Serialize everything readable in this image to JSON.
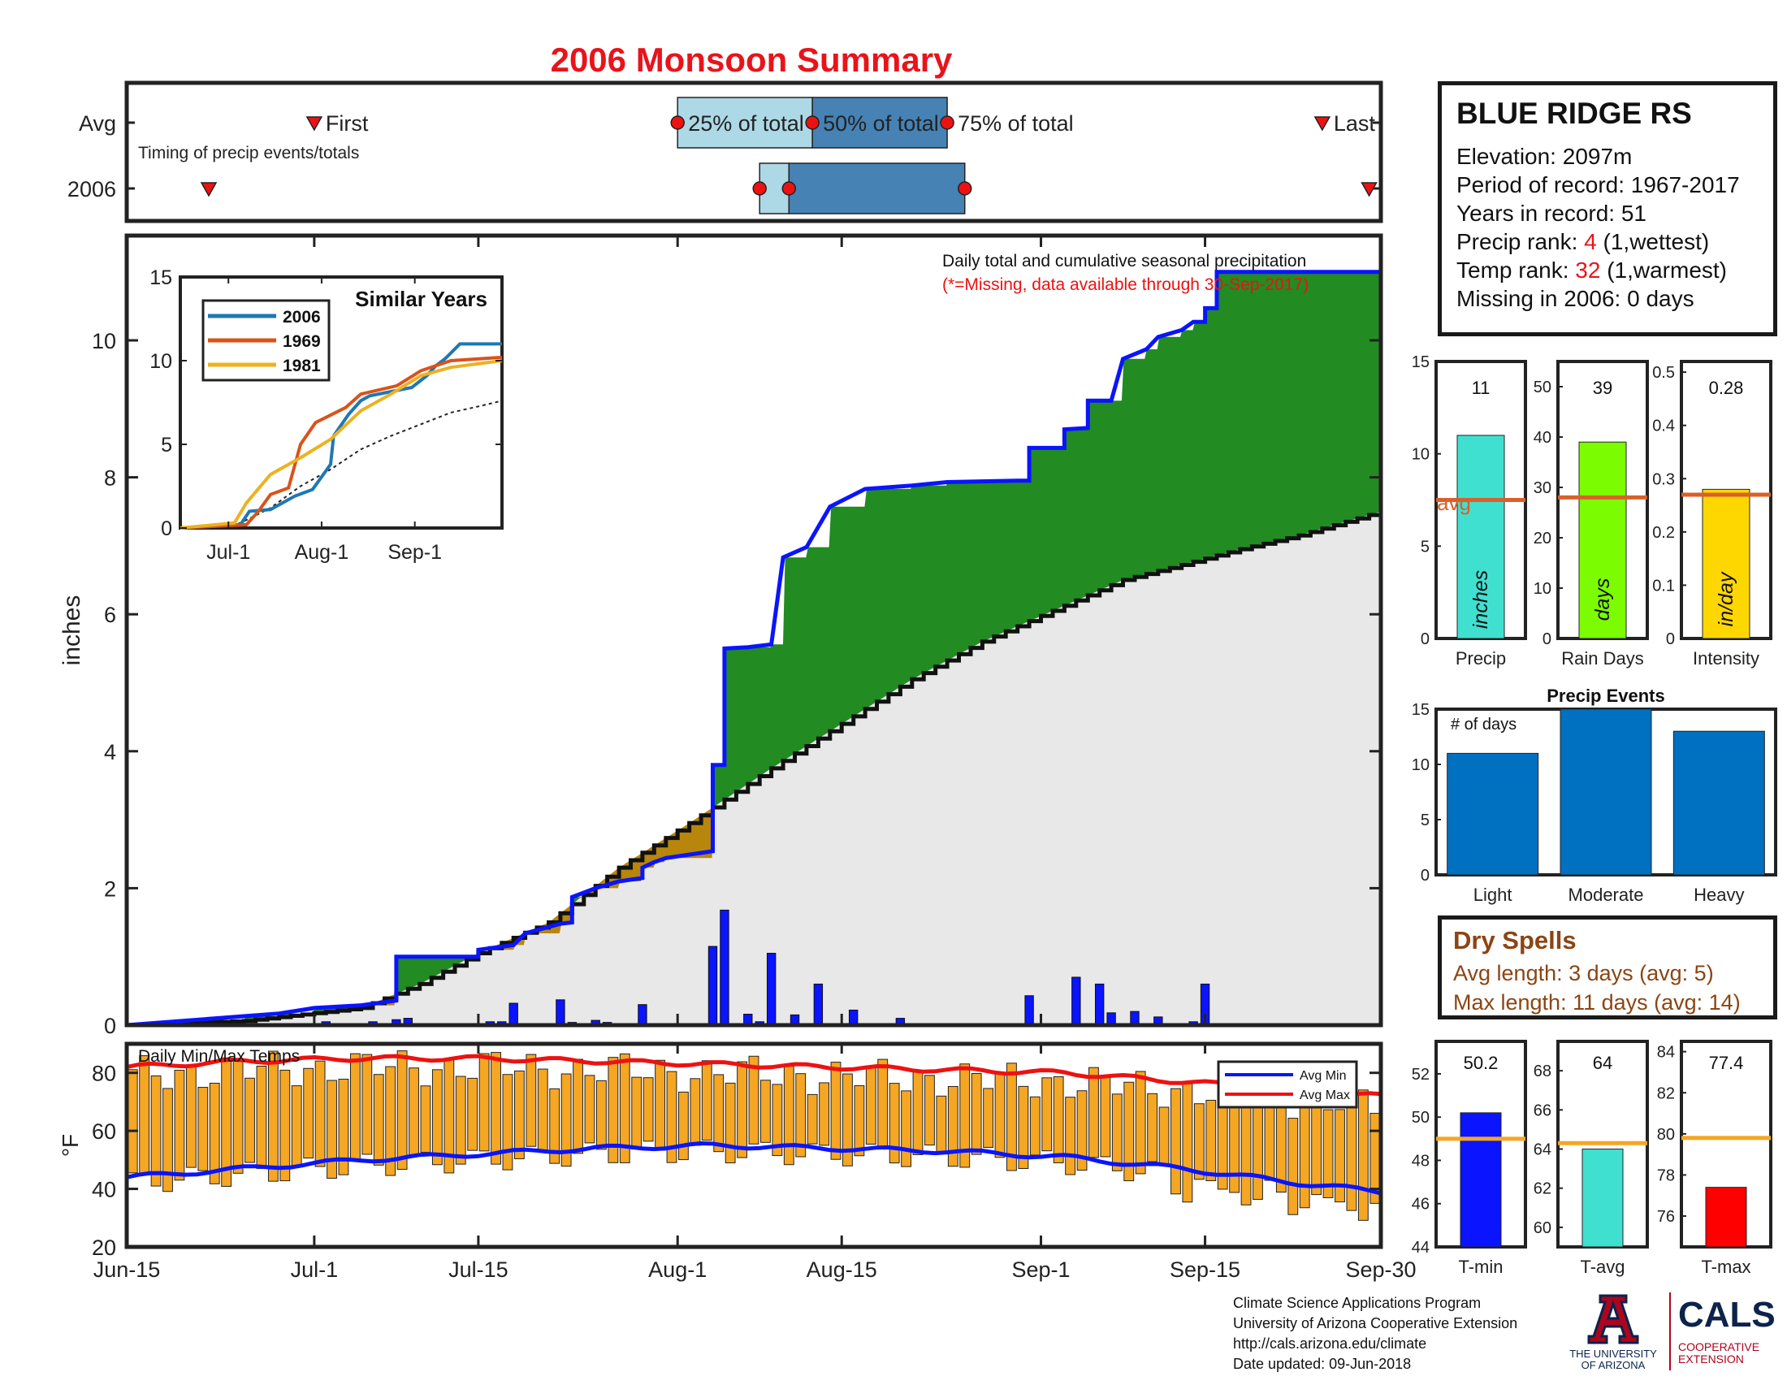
{
  "title": "2006 Monsoon Summary",
  "station": {
    "name": "BLUE RIDGE RS",
    "elevation": "Elevation: 2097m",
    "period": "Period of record: 1967-2017",
    "years": "Years in record: 51",
    "precip_rank_label": "Precip rank: ",
    "precip_rank_value": "4",
    "precip_rank_note": " (1,wettest)",
    "temp_rank_label": "Temp rank: ",
    "temp_rank_value": "32",
    "temp_rank_note": " (1,warmest)",
    "missing": "Missing in 2006: 0 days"
  },
  "dry_spells": {
    "title": "Dry Spells",
    "avg": "Avg length: 3 days (avg: 5)",
    "max": "Max length: 11 days (avg: 14)"
  },
  "footer": {
    "line1": "Climate Science Applications Program",
    "line2": "University of Arizona Cooperative Extension",
    "line3": "http://cals.arizona.edu/climate",
    "line4": " Date updated: 09-Jun-2018"
  },
  "logos": {
    "ua_line1": "THE UNIVERSITY",
    "ua_line2": "OF ARIZONA",
    "cals": "CALS",
    "cals_sub1": "COOPERATIVE",
    "cals_sub2": "EXTENSION"
  },
  "colors": {
    "title_red": "#e8141b",
    "cumulative_line": "#0a14ff",
    "above_avg_fill": "#228b22",
    "below_avg_fill": "#b8860b",
    "avg_fill": "#e8e8e8",
    "daily_bar": "#0a14ff",
    "temp_bar": "#f5a623",
    "avg_max_line": "#ee1111",
    "avg_min_line": "#0a14ff",
    "avg_ref_line": "#d9602a"
  },
  "chart_data": [
    {
      "id": "timing",
      "type": "range",
      "title": "",
      "note": "Timing of precip events/totals",
      "rows": [
        "Avg",
        "2006"
      ],
      "labels": {
        "first": "First",
        "q25": "25% of total",
        "q50": "50% of total",
        "q75": "75% of total",
        "last": "Last"
      },
      "avg": {
        "first": 16,
        "q25": 47,
        "q50": 58.5,
        "q75": 70,
        "last": 102
      },
      "year": {
        "first": 7,
        "q25": 54,
        "q50": 56.5,
        "q75": 71.5,
        "last": 106
      },
      "xlim": [
        0,
        107
      ]
    },
    {
      "id": "precip_main",
      "type": "area",
      "ylabel": "inches",
      "annotation": "Daily total and cumulative seasonal precipitation",
      "annotation_missing": "(*=Missing, data available through 30-Sep-2017)",
      "x_ticks": [
        "Jun-15",
        "Jul-1",
        "Jul-15",
        "Aug-1",
        "Aug-15",
        "Sep-1",
        "Sep-15",
        "Sep-30"
      ],
      "x_tick_days": [
        0,
        16,
        30,
        47,
        61,
        78,
        92,
        107
      ],
      "ylim": [
        0,
        11.5
      ],
      "y_ticks": [
        0,
        2,
        4,
        6,
        8,
        10
      ],
      "cumulative_2006": [
        [
          0,
          0
        ],
        [
          10,
          0.13
        ],
        [
          13,
          0.17
        ],
        [
          16,
          0.25
        ],
        [
          20,
          0.29
        ],
        [
          23,
          0.36
        ],
        [
          23,
          1.0
        ],
        [
          30,
          1.0
        ],
        [
          30,
          1.1
        ],
        [
          33,
          1.17
        ],
        [
          34,
          1.34
        ],
        [
          37,
          1.48
        ],
        [
          38,
          1.5
        ],
        [
          38,
          1.87
        ],
        [
          40,
          2.0
        ],
        [
          42,
          2.1
        ],
        [
          44,
          2.15
        ],
        [
          44,
          2.3
        ],
        [
          45,
          2.38
        ],
        [
          46,
          2.44
        ],
        [
          50,
          2.54
        ],
        [
          50,
          2.65
        ],
        [
          50,
          3.8
        ],
        [
          51,
          3.8
        ],
        [
          51,
          5.5
        ],
        [
          53,
          5.52
        ],
        [
          55,
          5.56
        ],
        [
          56,
          6.83
        ],
        [
          58,
          6.98
        ],
        [
          60,
          7.57
        ],
        [
          63,
          7.83
        ],
        [
          67,
          7.88
        ],
        [
          70,
          7.93
        ],
        [
          76,
          7.95
        ],
        [
          77,
          7.95
        ],
        [
          77,
          8.43
        ],
        [
          80,
          8.43
        ],
        [
          80,
          8.7
        ],
        [
          82,
          8.72
        ],
        [
          82,
          9.12
        ],
        [
          84,
          9.12
        ],
        [
          85,
          9.73
        ],
        [
          87,
          9.87
        ],
        [
          88,
          10.05
        ],
        [
          90,
          10.15
        ],
        [
          91,
          10.27
        ],
        [
          92,
          10.27
        ],
        [
          92,
          10.47
        ],
        [
          93,
          10.47
        ],
        [
          93,
          11.0
        ],
        [
          107,
          11.0
        ]
      ],
      "average_cumulative": [
        [
          0,
          0
        ],
        [
          10,
          0.06
        ],
        [
          20,
          0.25
        ],
        [
          25,
          0.6
        ],
        [
          30,
          1.05
        ],
        [
          36,
          1.5
        ],
        [
          42,
          2.3
        ],
        [
          48,
          2.95
        ],
        [
          55,
          3.75
        ],
        [
          61,
          4.4
        ],
        [
          67,
          5.05
        ],
        [
          73,
          5.6
        ],
        [
          79,
          6.05
        ],
        [
          85,
          6.5
        ],
        [
          90,
          6.72
        ],
        [
          95,
          6.95
        ],
        [
          100,
          7.15
        ],
        [
          105,
          7.4
        ],
        [
          107,
          7.5
        ]
      ],
      "daily_precip": [
        [
          17,
          0.05
        ],
        [
          21,
          0.05
        ],
        [
          23,
          0.08
        ],
        [
          24,
          0.1
        ],
        [
          31,
          0.05
        ],
        [
          32,
          0.05
        ],
        [
          33,
          0.32
        ],
        [
          37,
          0.37
        ],
        [
          38,
          0.04
        ],
        [
          40,
          0.07
        ],
        [
          41,
          0.04
        ],
        [
          44,
          0.3
        ],
        [
          50,
          1.15
        ],
        [
          51,
          1.68
        ],
        [
          53,
          0.16
        ],
        [
          54,
          0.05
        ],
        [
          55,
          1.05
        ],
        [
          57,
          0.15
        ],
        [
          59,
          0.6
        ],
        [
          62,
          0.22
        ],
        [
          66,
          0.1
        ],
        [
          77,
          0.43
        ],
        [
          81,
          0.7
        ],
        [
          83,
          0.6
        ],
        [
          84,
          0.18
        ],
        [
          86,
          0.2
        ],
        [
          88,
          0.12
        ],
        [
          91,
          0.05
        ],
        [
          92,
          0.6
        ]
      ]
    },
    {
      "id": "similar_years",
      "type": "line",
      "title": "Similar Years",
      "x_ticks": [
        "Jul-1",
        "Aug-1",
        "Sep-1"
      ],
      "x_tick_days": [
        16,
        47,
        78
      ],
      "ylim": [
        0,
        15
      ],
      "y_ticks": [
        0,
        5,
        10,
        15
      ],
      "series": [
        {
          "name": "2006",
          "color": "#1f77b4",
          "points": [
            [
              0,
              0
            ],
            [
              20,
              0.2
            ],
            [
              23,
              1.0
            ],
            [
              30,
              1.1
            ],
            [
              38,
              1.9
            ],
            [
              44,
              2.3
            ],
            [
              50,
              3.8
            ],
            [
              51,
              5.5
            ],
            [
              56,
              6.8
            ],
            [
              60,
              7.6
            ],
            [
              63,
              7.9
            ],
            [
              77,
              8.4
            ],
            [
              82,
              9.1
            ],
            [
              85,
              9.7
            ],
            [
              88,
              10.1
            ],
            [
              93,
              11.0
            ],
            [
              107,
              11.0
            ]
          ]
        },
        {
          "name": "1969",
          "color": "#d95319",
          "points": [
            [
              0,
              0
            ],
            [
              22,
              0.2
            ],
            [
              26,
              1.0
            ],
            [
              30,
              2.0
            ],
            [
              36,
              2.4
            ],
            [
              40,
              5.0
            ],
            [
              45,
              6.3
            ],
            [
              55,
              7.2
            ],
            [
              60,
              8.0
            ],
            [
              72,
              8.5
            ],
            [
              80,
              9.4
            ],
            [
              90,
              10.0
            ],
            [
              107,
              10.2
            ]
          ]
        },
        {
          "name": "1981",
          "color": "#edb120",
          "points": [
            [
              0,
              0
            ],
            [
              18,
              0.3
            ],
            [
              22,
              1.5
            ],
            [
              30,
              3.2
            ],
            [
              40,
              4.2
            ],
            [
              50,
              5.3
            ],
            [
              60,
              7.0
            ],
            [
              70,
              8.0
            ],
            [
              80,
              9.1
            ],
            [
              90,
              9.6
            ],
            [
              107,
              10.0
            ]
          ]
        }
      ],
      "average": [
        [
          0,
          0
        ],
        [
          20,
          0.3
        ],
        [
          30,
          1.2
        ],
        [
          40,
          2.5
        ],
        [
          50,
          3.5
        ],
        [
          60,
          4.7
        ],
        [
          70,
          5.5
        ],
        [
          80,
          6.2
        ],
        [
          90,
          6.9
        ],
        [
          100,
          7.3
        ],
        [
          107,
          7.6
        ]
      ]
    },
    {
      "id": "temps",
      "type": "bar",
      "title": "Daily Min/Max Temps",
      "ylabel": "°F",
      "ylim": [
        20,
        90
      ],
      "y_ticks": [
        20,
        40,
        60,
        80
      ],
      "legend": [
        "Avg Min",
        "Avg Max"
      ],
      "legend_position": "top-right",
      "avg_max": [
        [
          0,
          82
        ],
        [
          10,
          84
        ],
        [
          20,
          85
        ],
        [
          30,
          85
        ],
        [
          40,
          84
        ],
        [
          50,
          83
        ],
        [
          60,
          82
        ],
        [
          70,
          81
        ],
        [
          80,
          80
        ],
        [
          90,
          77
        ],
        [
          100,
          74
        ],
        [
          107,
          72
        ]
      ],
      "avg_min": [
        [
          0,
          44
        ],
        [
          10,
          47
        ],
        [
          20,
          50
        ],
        [
          30,
          52
        ],
        [
          40,
          54
        ],
        [
          50,
          55
        ],
        [
          60,
          54
        ],
        [
          70,
          53
        ],
        [
          80,
          51
        ],
        [
          90,
          47
        ],
        [
          100,
          42
        ],
        [
          107,
          39
        ]
      ]
    },
    {
      "id": "precip_totals",
      "type": "bar",
      "panels": [
        {
          "category": "Precip",
          "unit": "inches",
          "value": 11,
          "label": "11",
          "avg": 7.5,
          "ylim": [
            0,
            15
          ],
          "y_ticks": [
            0,
            5,
            10,
            15
          ],
          "color": "#40e0d0"
        },
        {
          "category": "Rain Days",
          "unit": "days",
          "value": 39,
          "label": "39",
          "avg": 28,
          "ylim": [
            0,
            55
          ],
          "y_ticks": [
            0,
            10,
            20,
            30,
            40,
            50
          ],
          "color": "#7cfc00"
        },
        {
          "category": "Intensity",
          "unit": "in/day",
          "value": 0.28,
          "label": "0.28",
          "avg": 0.27,
          "ylim": [
            0,
            0.52
          ],
          "y_ticks": [
            0,
            0.1,
            0.2,
            0.3,
            0.4,
            0.5
          ],
          "color": "#ffd700"
        }
      ],
      "avg_label": "avg"
    },
    {
      "id": "precip_events",
      "type": "bar",
      "title": "Precip Events",
      "ylabel_inner": "# of days",
      "categories": [
        "Light",
        "Moderate",
        "Heavy"
      ],
      "values": [
        11,
        15,
        13
      ],
      "ylim": [
        0,
        15
      ],
      "y_ticks": [
        0,
        5,
        10,
        15
      ]
    },
    {
      "id": "temp_summary",
      "type": "bar",
      "panels": [
        {
          "category": "T-min",
          "value": 50.2,
          "label": "50.2",
          "avg": 49,
          "ylim": [
            44,
            53.5
          ],
          "y_ticks": [
            44,
            46,
            48,
            50,
            52
          ],
          "color": "#0a14ff"
        },
        {
          "category": "T-avg",
          "value": 64,
          "label": "64",
          "avg": 64.3,
          "ylim": [
            59,
            69.5
          ],
          "y_ticks": [
            60,
            62,
            64,
            66,
            68
          ],
          "color": "#40e0d0"
        },
        {
          "category": "T-max",
          "value": 77.4,
          "label": "77.4",
          "avg": 79.8,
          "ylim": [
            74.5,
            84.5
          ],
          "y_ticks": [
            76,
            78,
            80,
            82,
            84
          ],
          "color": "#ff0000"
        }
      ]
    }
  ]
}
